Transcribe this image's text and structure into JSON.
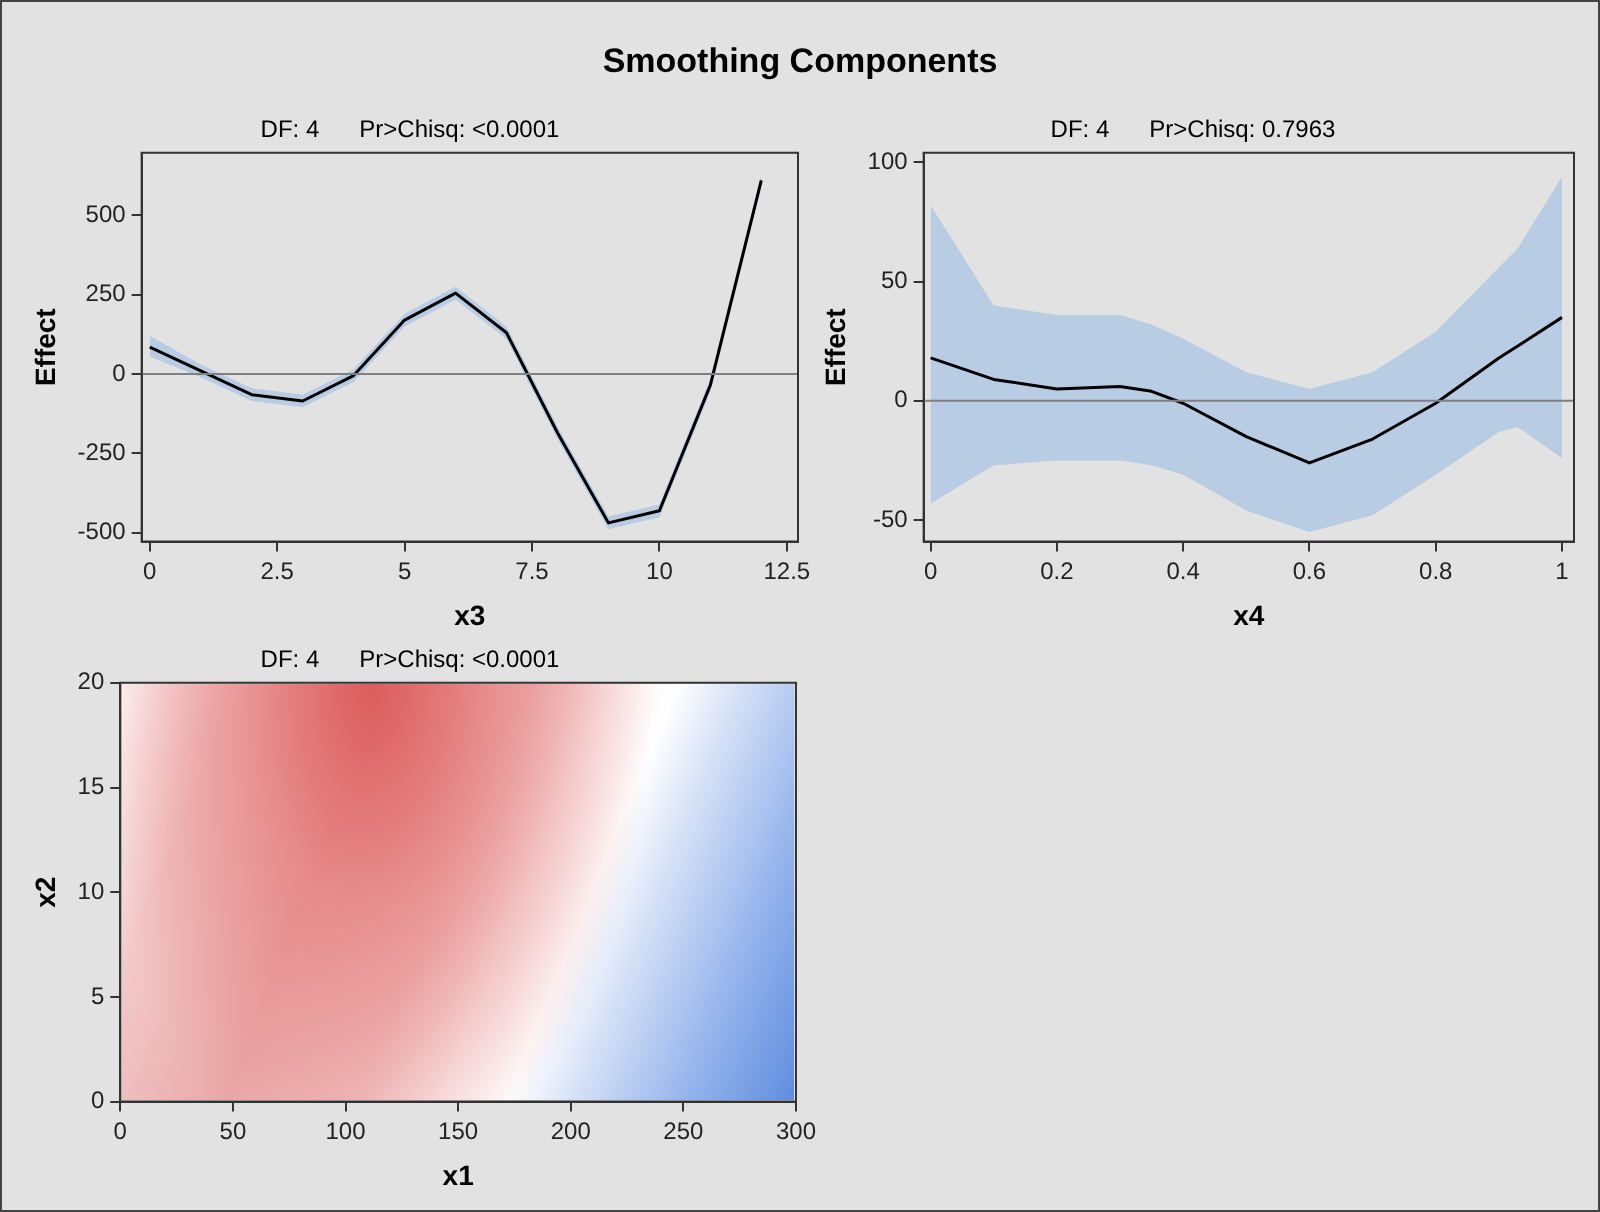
{
  "chart_data": [
    {
      "type": "other",
      "title": "Smoothing Components"
    },
    {
      "type": "line",
      "title": "DF: 4      Pr>Chisq: <0.0001",
      "xlabel": "x3",
      "ylabel": "Effect",
      "x": [
        0,
        1,
        2,
        3,
        4,
        5,
        6,
        7,
        8,
        9,
        10,
        11,
        12
      ],
      "series": [
        {
          "color": "#000000",
          "values": [
            85,
            10,
            -65,
            -85,
            -5,
            170,
            255,
            130,
            -185,
            -469,
            -431,
            -35,
            610
          ],
          "lower": [
            55,
            -10,
            -85,
            -105,
            -25,
            150,
            235,
            110,
            -205,
            -489,
            -451,
            -55,
            590
          ],
          "upper": [
            120,
            30,
            -45,
            -65,
            15,
            190,
            275,
            150,
            -165,
            -449,
            -411,
            -15,
            630
          ]
        }
      ],
      "xlim": [
        -0.16,
        12.72
      ],
      "ylim": [
        -528,
        697
      ],
      "xticks": [
        0,
        2.5,
        5,
        7.5,
        10,
        12.5
      ],
      "yticks": [
        -500,
        -250,
        0,
        250,
        500
      ],
      "ref_lines": [
        {
          "axis": "y",
          "value": 0,
          "color": "#808080"
        }
      ]
    },
    {
      "type": "line",
      "title": "DF: 4      Pr>Chisq: 0.7963",
      "xlabel": "x4",
      "ylabel": "Effect",
      "x": [
        0,
        0.1,
        0.2,
        0.3,
        0.35,
        0.4,
        0.5,
        0.6,
        0.7,
        0.8,
        0.9,
        0.93,
        1
      ],
      "series": [
        {
          "color": "#000000",
          "values": [
            18,
            9,
            5,
            6,
            4,
            -1,
            -15,
            -26,
            -16,
            -1,
            18,
            23,
            35
          ],
          "lower": [
            -43,
            -27,
            -25,
            -25,
            -27,
            -31,
            -46,
            -55,
            -48,
            -31,
            -13,
            -11,
            -24
          ],
          "upper": [
            82,
            40,
            36,
            36,
            32,
            26,
            12,
            5,
            12,
            29,
            56,
            64,
            94
          ]
        }
      ],
      "xlim": [
        -0.011,
        1.019
      ],
      "ylim": [
        -59,
        104
      ],
      "xticks": [
        0,
        0.2,
        0.4,
        0.6,
        0.8,
        1
      ],
      "yticks": [
        -50,
        0,
        50,
        100
      ],
      "ref_lines": [
        {
          "axis": "y",
          "value": 0,
          "color": "#808080"
        }
      ]
    },
    {
      "type": "scatter",
      "title": "DF: 4      Pr>Chisq: <0.0001",
      "xlabel": "x1",
      "ylabel": "x2",
      "xlim": [
        0,
        300
      ],
      "ylim": [
        0,
        20
      ],
      "xticks": [
        0,
        50,
        100,
        150,
        200,
        250,
        300
      ],
      "yticks": [
        0,
        5,
        10,
        15,
        20
      ]
    }
  ]
}
